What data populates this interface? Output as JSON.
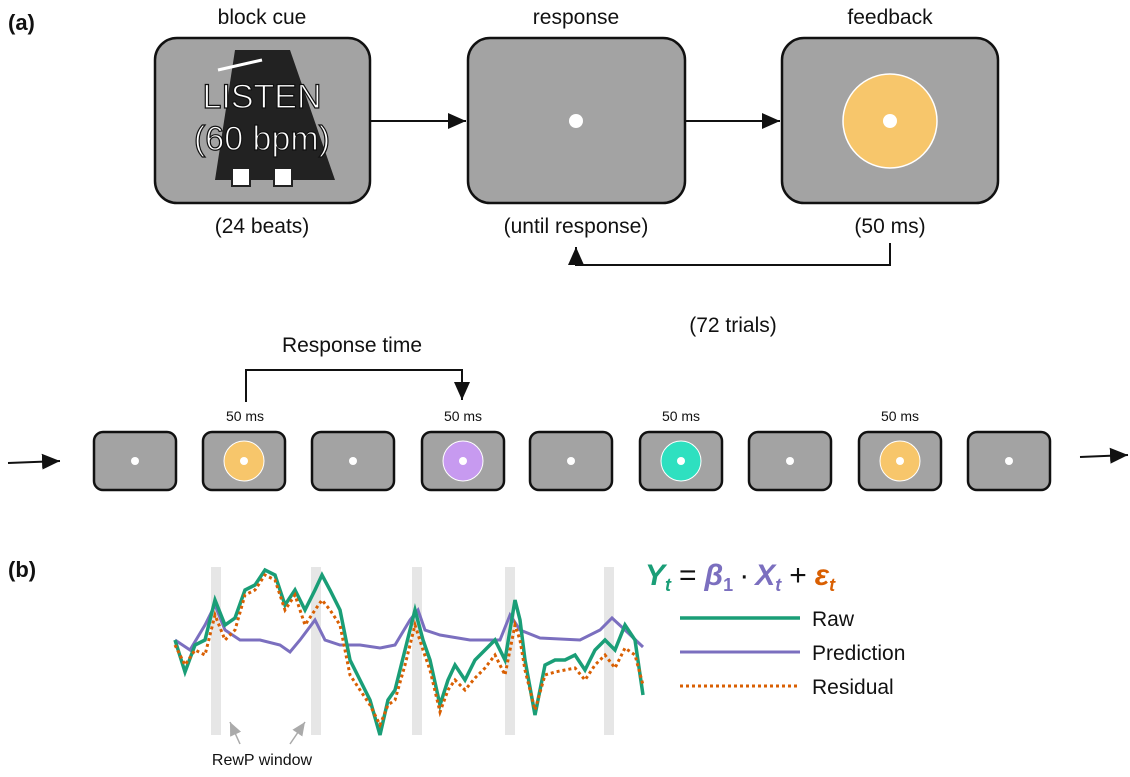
{
  "panel_a": {
    "label": "(a)",
    "steps": [
      {
        "title": "block cue",
        "cue_line1": "LISTEN",
        "cue_line2": "(60 bpm)",
        "duration": "(24 beats)"
      },
      {
        "title": "response",
        "duration": "(until response)"
      },
      {
        "title": "feedback",
        "duration": "(50 ms)"
      }
    ],
    "loop_label": "(72 trials)",
    "timeline": {
      "bracket_label": "Response time",
      "feedback_labels": [
        "50 ms",
        "50 ms",
        "50 ms",
        "50 ms"
      ]
    }
  },
  "panel_b": {
    "label": "(b)",
    "equation": [
      "Y",
      "t",
      "=",
      "β",
      "1",
      "·",
      "X",
      "t",
      "+",
      "ε",
      "t"
    ],
    "legend": [
      "Raw",
      "Prediction",
      "Residual"
    ],
    "window_label": "RewP window"
  }
}
